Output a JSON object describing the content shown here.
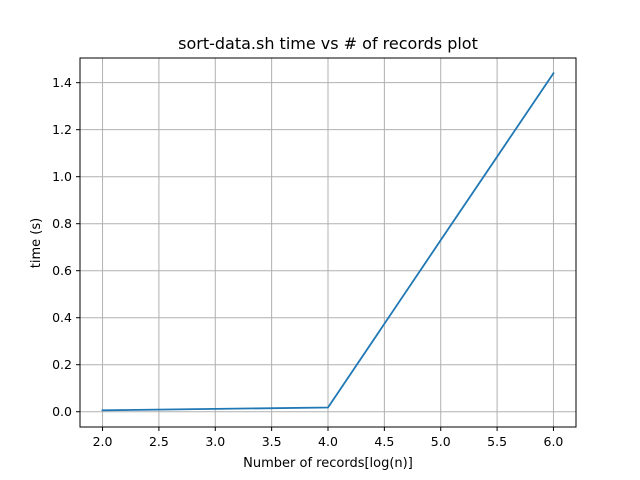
{
  "chart_data": {
    "type": "line",
    "title": "sort-data.sh time vs # of records plot",
    "xlabel": "Number of records[log(n)]",
    "ylabel": "time (s)",
    "xlim": [
      1.8,
      6.2
    ],
    "ylim": [
      -0.065,
      1.505
    ],
    "grid": true,
    "x_ticks": [
      2.0,
      2.5,
      3.0,
      3.5,
      4.0,
      4.5,
      5.0,
      5.5,
      6.0
    ],
    "x_tick_labels": [
      "2.0",
      "2.5",
      "3.0",
      "3.5",
      "4.0",
      "4.5",
      "5.0",
      "5.5",
      "6.0"
    ],
    "y_ticks": [
      0.0,
      0.2,
      0.4,
      0.6,
      0.8,
      1.0,
      1.2,
      1.4
    ],
    "y_tick_labels": [
      "0.0",
      "0.2",
      "0.4",
      "0.6",
      "0.8",
      "1.0",
      "1.2",
      "1.4"
    ],
    "series": [
      {
        "color": "#1f77b4",
        "x": [
          2,
          3,
          4,
          5,
          6
        ],
        "y": [
          0.006,
          0.012,
          0.018,
          0.73,
          1.44
        ]
      }
    ]
  }
}
